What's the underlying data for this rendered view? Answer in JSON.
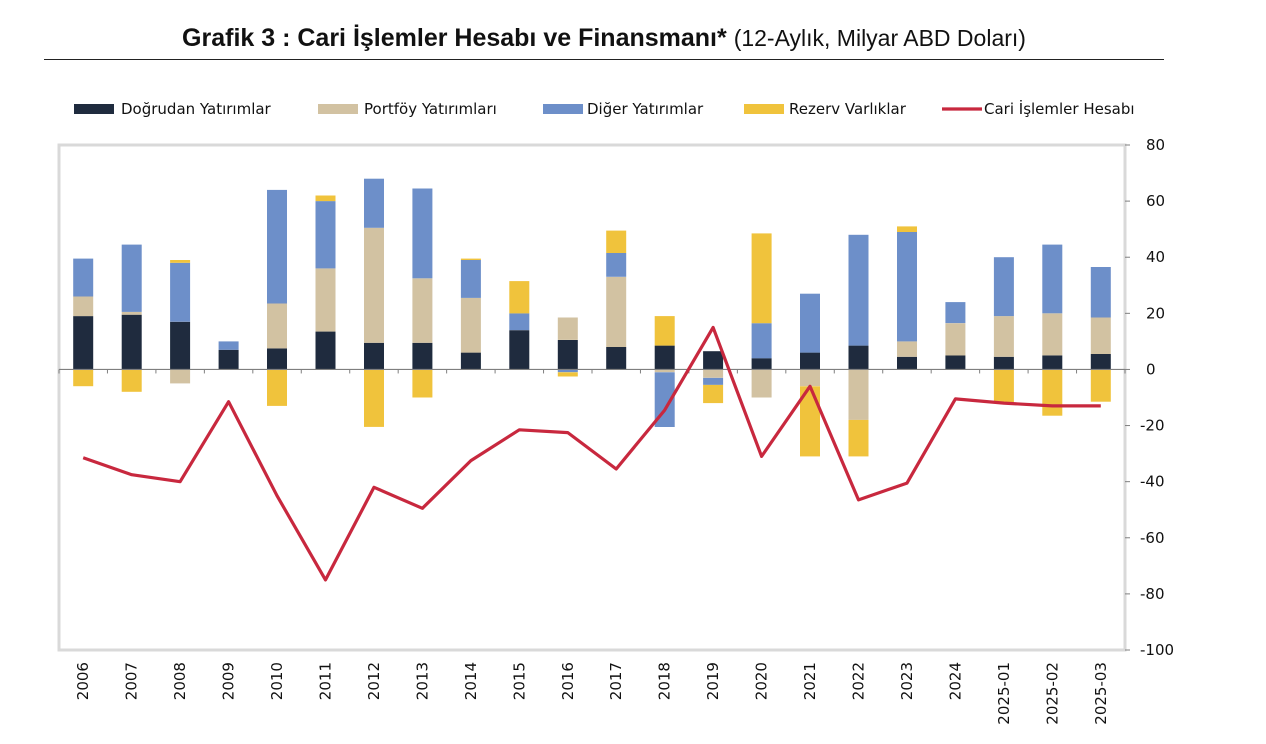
{
  "title": "Grafik 3 : Cari İşlemler Hesabı ve Finansmanı*",
  "subtitle": "(12-Aylık, Milyar ABD Doları)",
  "chart_data": {
    "type": "bar",
    "stacked": true,
    "categories": [
      "2006",
      "2007",
      "2008",
      "2009",
      "2010",
      "2011",
      "2012",
      "2013",
      "2014",
      "2015",
      "2016",
      "2017",
      "2018",
      "2019",
      "2020",
      "2021",
      "2022",
      "2023",
      "2024",
      "2025-01",
      "2025-02",
      "2025-03"
    ],
    "ylim": [
      -100,
      80
    ],
    "yticks": [
      80,
      60,
      40,
      20,
      0,
      -20,
      -40,
      -60,
      -80,
      -100
    ],
    "y_axis_side": "right",
    "grid": false,
    "legend_position": "top",
    "series": [
      {
        "name": "Doğrudan Yatırımlar",
        "kind": "bar",
        "color": "#1f2b3e",
        "values": [
          19,
          19.5,
          17,
          7,
          7.5,
          13.5,
          9.5,
          9.5,
          6,
          14,
          10.5,
          8,
          8.5,
          6.5,
          4,
          6,
          8.5,
          4.5,
          5,
          4.5,
          5,
          5.5
        ]
      },
      {
        "name": "Portföy Yatırımları",
        "kind": "bar",
        "color": "#d2c2a2",
        "values": [
          7,
          1,
          -5,
          0,
          16,
          22.5,
          41,
          23,
          19.5,
          0,
          8,
          25,
          -1,
          -3,
          -10,
          -6,
          -18,
          5.5,
          11.5,
          14.5,
          15,
          13
        ]
      },
      {
        "name": "Diğer Yatırımlar",
        "kind": "bar",
        "color": "#6d8fc9",
        "values": [
          13.5,
          24,
          21,
          3,
          40.5,
          24,
          17.5,
          32,
          13.5,
          6,
          -1,
          8.5,
          -19.5,
          -2.5,
          12.5,
          21,
          39.5,
          39,
          7.5,
          21,
          24.5,
          18
        ]
      },
      {
        "name": "Rezerv Varlıklar",
        "kind": "bar",
        "color": "#f0c33c",
        "values": [
          -6,
          -8,
          1,
          0,
          -13,
          2,
          -20.5,
          -10,
          0.5,
          11.5,
          -1.5,
          8,
          10.5,
          -6.5,
          32,
          -25,
          -13,
          2,
          0,
          -12,
          -16.5,
          -11.5
        ]
      },
      {
        "name": "Cari İşlemler Hesabı",
        "kind": "line",
        "color": "#c8283e",
        "values": [
          -31.5,
          -37.5,
          -40,
          -11.5,
          -45,
          -75,
          -42,
          -49.5,
          -32.5,
          -21.5,
          -22.5,
          -35.5,
          -14.5,
          15,
          -31,
          -6,
          -46.5,
          -40.5,
          -10.5,
          -12,
          -13,
          -13
        ]
      }
    ]
  }
}
